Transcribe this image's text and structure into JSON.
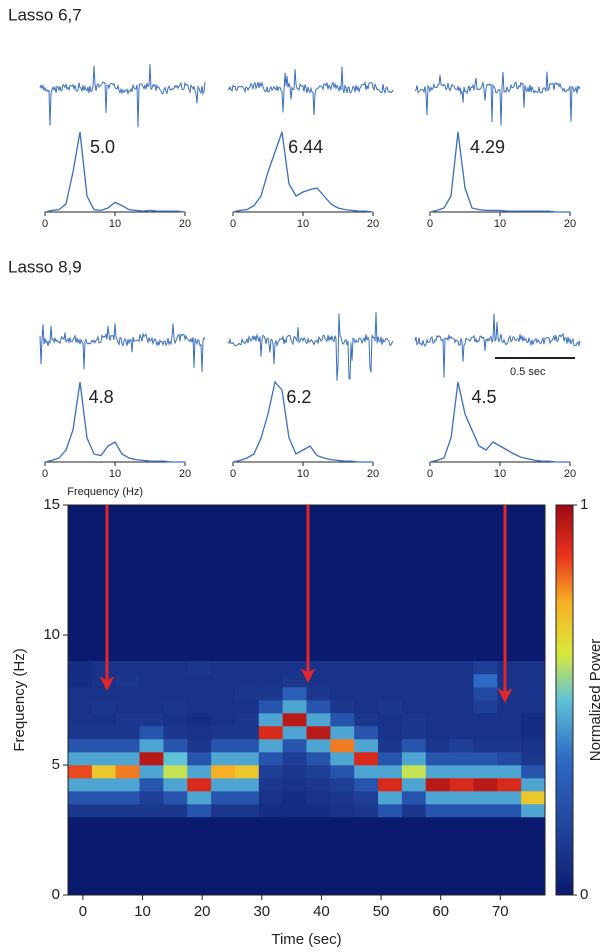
{
  "figure": {
    "rows": [
      {
        "label": "Lasso 6,7"
      },
      {
        "label": "Lasso 8,9"
      }
    ],
    "scale_bar": "0.5 sec"
  },
  "chart_data": [
    {
      "type": "line",
      "x": [
        0,
        1,
        2,
        3,
        4,
        5,
        6,
        7,
        8,
        9,
        10,
        11,
        12,
        13,
        14,
        15,
        16,
        17,
        18,
        19,
        20
      ],
      "values": [
        0,
        0.02,
        0.03,
        0.1,
        0.5,
        1,
        0.2,
        0.03,
        0.02,
        0.05,
        0.12,
        0.08,
        0.03,
        0.02,
        0.01,
        0.02,
        0.01,
        0.01,
        0.01,
        0.01,
        0
      ],
      "xlim": [
        0,
        20
      ],
      "xticks": [
        0,
        10,
        20
      ],
      "ylim": [
        0,
        1
      ],
      "color": "#3a6fc0",
      "peak": {
        "value": 5,
        "label": "5.0"
      }
    },
    {
      "type": "line",
      "x": [
        0,
        1,
        2,
        3,
        4,
        5,
        6,
        7,
        8,
        9,
        10,
        11,
        12,
        13,
        14,
        15,
        16,
        17,
        18,
        19,
        20
      ],
      "values": [
        0,
        0.02,
        0.03,
        0.08,
        0.2,
        0.5,
        0.75,
        1,
        0.35,
        0.2,
        0.25,
        0.28,
        0.3,
        0.2,
        0.1,
        0.05,
        0.03,
        0.02,
        0.01,
        0.01,
        0
      ],
      "xlim": [
        0,
        20
      ],
      "xticks": [
        0,
        10,
        20
      ],
      "ylim": [
        0,
        1
      ],
      "color": "#3a6fc0",
      "peak": {
        "value": 6.44,
        "label": "6.44"
      }
    },
    {
      "type": "line",
      "x": [
        0,
        1,
        2,
        3,
        4,
        5,
        6,
        7,
        8,
        9,
        10,
        11,
        12,
        13,
        14,
        15,
        16,
        17,
        18,
        19,
        20
      ],
      "values": [
        0,
        0.02,
        0.05,
        0.2,
        1,
        0.3,
        0.05,
        0.03,
        0.02,
        0.02,
        0.02,
        0.01,
        0.01,
        0.01,
        0.01,
        0.01,
        0.01,
        0.01,
        0,
        0,
        0
      ],
      "xlim": [
        0,
        20
      ],
      "xticks": [
        0,
        10,
        20
      ],
      "ylim": [
        0,
        1
      ],
      "color": "#3a6fc0",
      "peak": {
        "value": 4.29,
        "label": "4.29"
      }
    },
    {
      "type": "line",
      "x": [
        0,
        1,
        2,
        3,
        4,
        5,
        6,
        7,
        8,
        9,
        10,
        11,
        12,
        13,
        14,
        15,
        16,
        17,
        18,
        19,
        20
      ],
      "values": [
        0,
        0.02,
        0.05,
        0.15,
        0.4,
        1,
        0.3,
        0.1,
        0.08,
        0.2,
        0.25,
        0.1,
        0.05,
        0.03,
        0.02,
        0.01,
        0.01,
        0.01,
        0,
        0,
        0
      ],
      "xlim": [
        0,
        20
      ],
      "xticks": [
        0,
        10,
        20
      ],
      "ylim": [
        0,
        1
      ],
      "color": "#3a6fc0",
      "peak": {
        "value": 4.8,
        "label": "4.8"
      },
      "xlabel": "Frequency (Hz)"
    },
    {
      "type": "line",
      "x": [
        0,
        1,
        2,
        3,
        4,
        5,
        6,
        7,
        8,
        9,
        10,
        11,
        12,
        13,
        14,
        15,
        16,
        17,
        18,
        19,
        20
      ],
      "values": [
        0,
        0.02,
        0.05,
        0.1,
        0.3,
        0.6,
        1,
        0.9,
        0.3,
        0.1,
        0.15,
        0.2,
        0.08,
        0.05,
        0.03,
        0.02,
        0.01,
        0.01,
        0,
        0,
        0
      ],
      "xlim": [
        0,
        20
      ],
      "xticks": [
        0,
        10,
        20
      ],
      "ylim": [
        0,
        1
      ],
      "color": "#3a6fc0",
      "peak": {
        "value": 6.2,
        "label": "6.2"
      }
    },
    {
      "type": "line",
      "x": [
        0,
        1,
        2,
        3,
        4,
        5,
        6,
        7,
        8,
        9,
        10,
        11,
        12,
        13,
        14,
        15,
        16,
        17,
        18,
        19,
        20
      ],
      "values": [
        0,
        0.02,
        0.05,
        0.3,
        1,
        0.6,
        0.4,
        0.2,
        0.15,
        0.25,
        0.2,
        0.15,
        0.1,
        0.06,
        0.04,
        0.02,
        0.01,
        0.01,
        0,
        0,
        0
      ],
      "xlim": [
        0,
        20
      ],
      "xticks": [
        0,
        10,
        20
      ],
      "ylim": [
        0,
        1
      ],
      "color": "#3a6fc0",
      "peak": {
        "value": 4.5,
        "label": "4.5"
      }
    },
    {
      "type": "heatmap",
      "x": [
        -0.5,
        3.5,
        7.5,
        11.5,
        15.5,
        19.5,
        23.5,
        27.5,
        31.5,
        35.5,
        39.5,
        43.5,
        47.5,
        51.5,
        55.5,
        59.5,
        63.5,
        67.5,
        71.5,
        75.5
      ],
      "y": [
        3.25,
        3.75,
        4.25,
        4.75,
        5.25,
        5.75,
        6.25,
        6.75,
        7.25,
        7.75,
        8.25,
        8.75
      ],
      "z": [
        [
          0.12,
          0.12,
          0.12,
          0.12,
          0.12,
          0.25,
          0.12,
          0.12,
          0.08,
          0.08,
          0.08,
          0.1,
          0.12,
          0.25,
          0.12,
          0.25,
          0.25,
          0.25,
          0.25,
          0.45
        ],
        [
          0.25,
          0.25,
          0.25,
          0.15,
          0.25,
          0.45,
          0.25,
          0.25,
          0.1,
          0.08,
          0.1,
          0.12,
          0.15,
          0.45,
          0.25,
          0.45,
          0.45,
          0.45,
          0.45,
          0.7
        ],
        [
          0.45,
          0.45,
          0.45,
          0.25,
          0.45,
          0.9,
          0.45,
          0.45,
          0.12,
          0.1,
          0.12,
          0.15,
          0.25,
          0.9,
          0.45,
          0.95,
          0.9,
          0.95,
          0.9,
          0.45
        ],
        [
          0.85,
          0.7,
          0.8,
          0.45,
          0.6,
          0.45,
          0.75,
          0.7,
          0.15,
          0.12,
          0.15,
          0.25,
          0.45,
          0.45,
          0.6,
          0.45,
          0.45,
          0.45,
          0.45,
          0.25
        ],
        [
          0.45,
          0.45,
          0.45,
          0.95,
          0.5,
          0.25,
          0.45,
          0.45,
          0.25,
          0.15,
          0.25,
          0.45,
          0.9,
          0.25,
          0.45,
          0.25,
          0.25,
          0.25,
          0.2,
          0.12
        ],
        [
          0.25,
          0.25,
          0.25,
          0.45,
          0.25,
          0.12,
          0.25,
          0.25,
          0.45,
          0.25,
          0.45,
          0.8,
          0.45,
          0.12,
          0.25,
          0.12,
          0.15,
          0.12,
          0.12,
          0.1
        ],
        [
          0.12,
          0.12,
          0.12,
          0.25,
          0.12,
          0.1,
          0.12,
          0.12,
          0.9,
          0.45,
          0.95,
          0.45,
          0.25,
          0.1,
          0.12,
          0.1,
          0.1,
          0.1,
          0.1,
          0.08
        ],
        [
          0.1,
          0.1,
          0.12,
          0.12,
          0.1,
          0.08,
          0.1,
          0.12,
          0.45,
          0.95,
          0.45,
          0.25,
          0.12,
          0.1,
          0.12,
          0.1,
          0.1,
          0.1,
          0.1,
          0.08
        ],
        [
          0.1,
          0.12,
          0.1,
          0.1,
          0.12,
          0.1,
          0.1,
          0.1,
          0.25,
          0.45,
          0.25,
          0.12,
          0.1,
          0.12,
          0.1,
          0.1,
          0.1,
          0.15,
          0.1,
          0.1
        ],
        [
          0.1,
          0.1,
          0.1,
          0.1,
          0.1,
          0.1,
          0.1,
          0.12,
          0.12,
          0.3,
          0.12,
          0.1,
          0.1,
          0.1,
          0.1,
          0.1,
          0.1,
          0.2,
          0.1,
          0.1
        ],
        [
          0.08,
          0.1,
          0.12,
          0.1,
          0.1,
          0.1,
          0.1,
          0.1,
          0.1,
          0.12,
          0.1,
          0.1,
          0.1,
          0.1,
          0.1,
          0.1,
          0.1,
          0.35,
          0.1,
          0.1
        ],
        [
          0.08,
          0.1,
          0.1,
          0.1,
          0.1,
          0.12,
          0.1,
          0.1,
          0.1,
          0.1,
          0.1,
          0.1,
          0.1,
          0.1,
          0.1,
          0.1,
          0.1,
          0.15,
          0.1,
          0.1
        ]
      ],
      "xlim": [
        -2.5,
        77.5
      ],
      "ylim": [
        0,
        15
      ],
      "xticks": [
        0,
        10,
        20,
        30,
        40,
        50,
        60,
        70
      ],
      "yticks": [
        0,
        5,
        10,
        15
      ],
      "xlabel": "Time (sec)",
      "ylabel": "Frequency (Hz)",
      "colorbar": {
        "label": "Normalized Power",
        "lim": [
          0,
          1
        ],
        "ticks": [
          0,
          1
        ]
      }
    }
  ]
}
